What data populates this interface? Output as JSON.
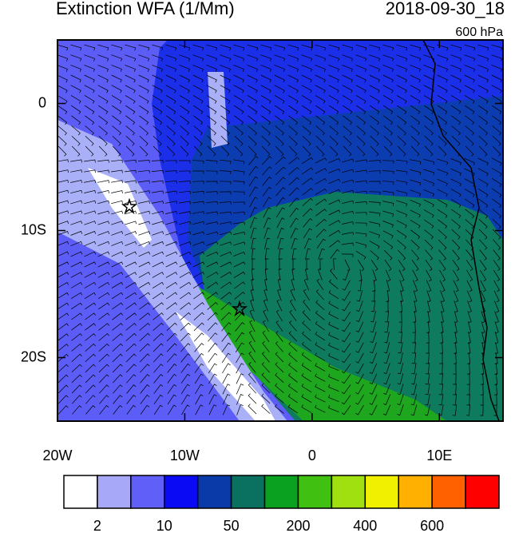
{
  "header": {
    "title": "Extinction WFA (1/Mm)",
    "time": "2018-09-30_18",
    "level": "600 hPa"
  },
  "map": {
    "xlim": [
      -20,
      15
    ],
    "ylim": [
      -25,
      5
    ],
    "xticks": [
      {
        "value": -20,
        "label": "20W"
      },
      {
        "value": -10,
        "label": "10W"
      },
      0,
      {
        "value": 10,
        "label": "10E"
      }
    ],
    "yticks": [
      0,
      {
        "value": -10,
        "label": "10S"
      },
      {
        "value": -20,
        "label": "20S"
      }
    ]
  },
  "colorbar": {
    "colors": [
      "#ffffff",
      "#a8a8f8",
      "#6060f8",
      "#0a0af5",
      "#0a3aa8",
      "#0a7060",
      "#0aa020",
      "#40c010",
      "#a0e010",
      "#f0f000",
      "#ffb000",
      "#ff6000",
      "#ff0000"
    ],
    "ticks": [
      2,
      10,
      50,
      200,
      400,
      600
    ]
  }
}
